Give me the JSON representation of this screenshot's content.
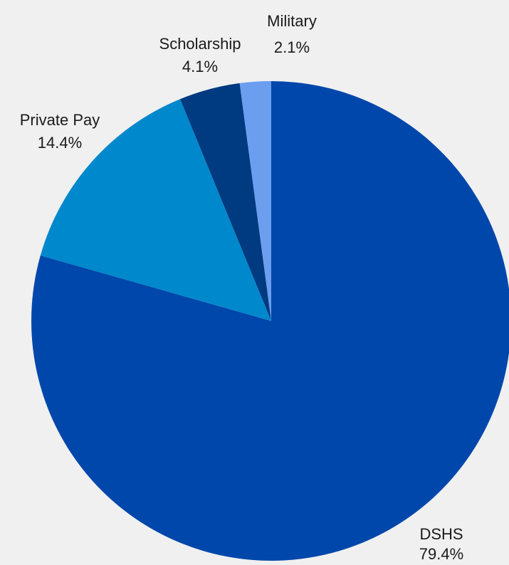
{
  "chart_data": {
    "type": "pie",
    "title": "",
    "start": "top",
    "direction": "clockwise",
    "legend": "none",
    "slices": [
      {
        "label": "DSHS",
        "value": 79.4,
        "value_label": "79.4%",
        "color": "#0047ab"
      },
      {
        "label": "Private Pay",
        "value": 14.4,
        "value_label": "14.4%",
        "color": "#0088cc"
      },
      {
        "label": "Scholarship",
        "value": 4.1,
        "value_label": "4.1%",
        "color": "#003a80"
      },
      {
        "label": "Military",
        "value": 2.1,
        "value_label": "2.1%",
        "color": "#6b9eef"
      }
    ]
  }
}
